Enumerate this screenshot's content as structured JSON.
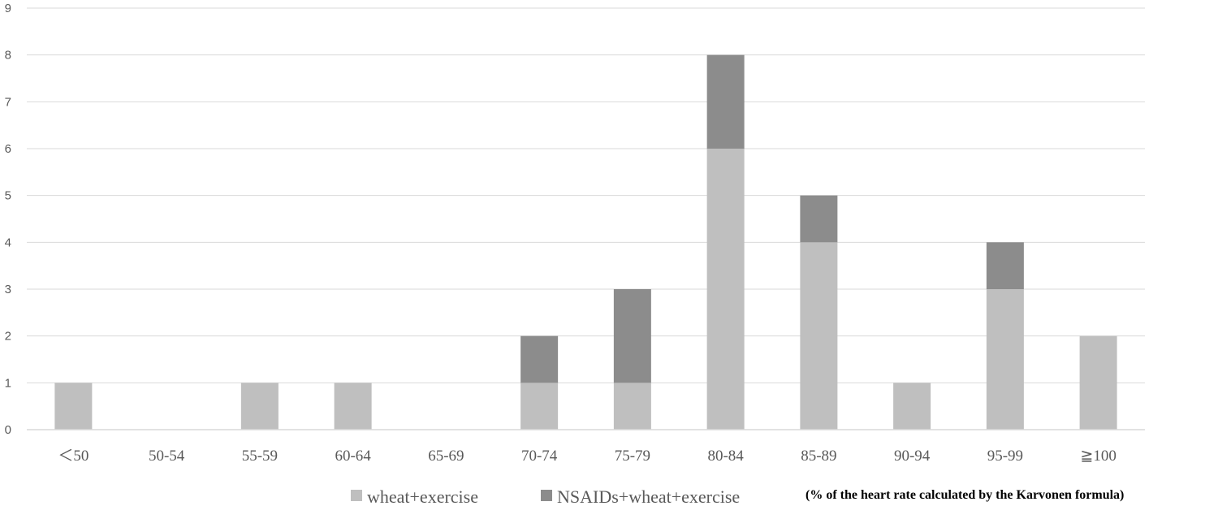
{
  "chart_data": {
    "type": "bar",
    "stacked": true,
    "categories": [
      "＜50",
      "50-54",
      "55-59",
      "60-64",
      "65-69",
      "70-74",
      "75-79",
      "80-84",
      "85-89",
      "90-94",
      "95-99",
      "≧100"
    ],
    "series": [
      {
        "name": "wheat+exercise",
        "values": [
          1,
          0,
          1,
          1,
          0,
          1,
          1,
          6,
          4,
          1,
          3,
          2
        ],
        "color": "#bfbfbf"
      },
      {
        "name": "NSAIDs+wheat+exercise",
        "values": [
          0,
          0,
          0,
          0,
          0,
          1,
          2,
          2,
          1,
          0,
          1,
          0
        ],
        "color": "#8c8c8c"
      }
    ],
    "ylim": [
      0,
      9
    ],
    "yticks": [
      0,
      1,
      2,
      3,
      4,
      5,
      6,
      7,
      8,
      9
    ],
    "grid": true,
    "legend_position": "bottom",
    "annotation": "(% of the heart rate calculated by the Karvonen formula)"
  }
}
